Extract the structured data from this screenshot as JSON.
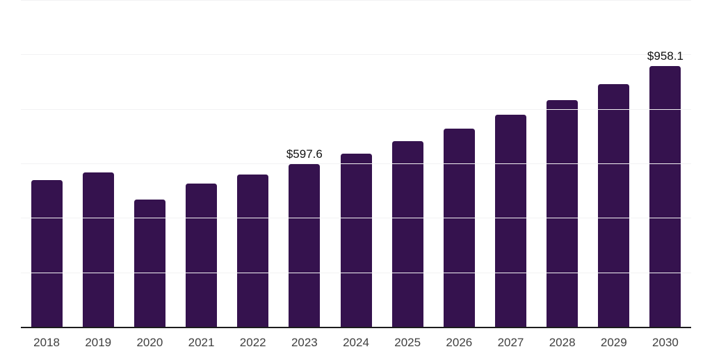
{
  "chart_data": {
    "type": "bar",
    "title": "",
    "xlabel": "",
    "ylabel": "",
    "categories": [
      "2018",
      "2019",
      "2020",
      "2021",
      "2022",
      "2023",
      "2024",
      "2025",
      "2026",
      "2027",
      "2028",
      "2029",
      "2030"
    ],
    "values": [
      539,
      567,
      467,
      525,
      559,
      597.6,
      636,
      682,
      727,
      780,
      833,
      892,
      958.1
    ],
    "point_labels": {
      "2023": "$597.6",
      "2030": "$958.1"
    },
    "ylim": [
      0,
      1200
    ],
    "grid_step": 200,
    "grid": "horizontal",
    "legend": false,
    "colors": {
      "bar": "#35124E",
      "axis": "#1C1C1C",
      "gridline": "#F2F2F3",
      "value_label": "#111111",
      "tick_label": "#3F3F3F",
      "background": "#FFFFFF"
    }
  }
}
